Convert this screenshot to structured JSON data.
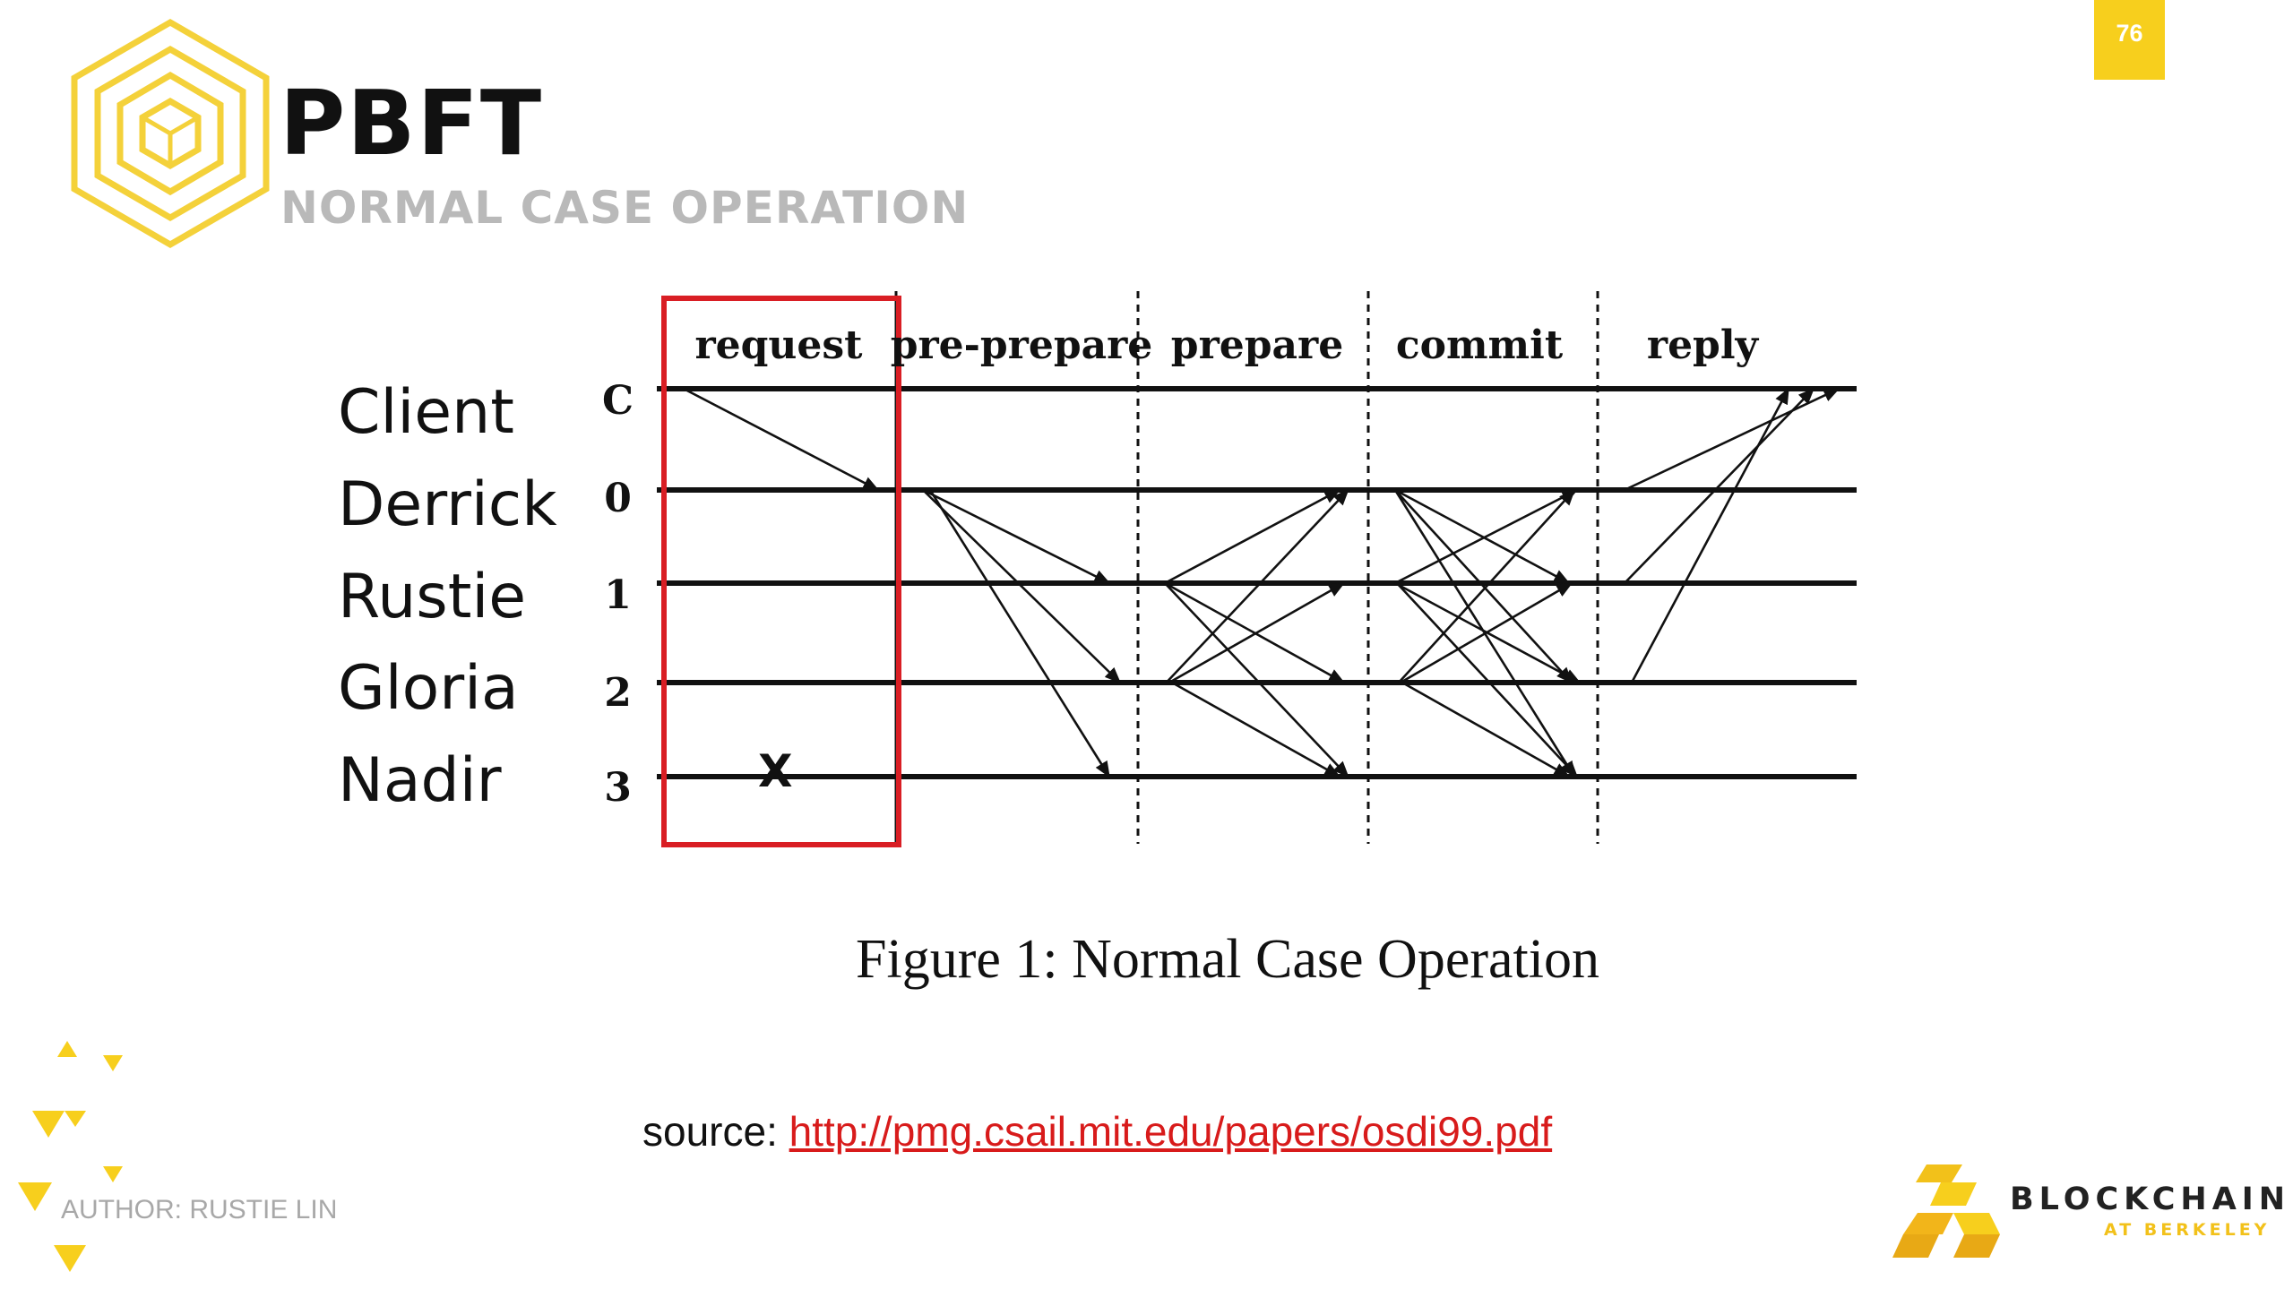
{
  "slide": {
    "number": "76",
    "title": "PBFT",
    "subtitle": "NORMAL CASE OPERATION",
    "author": "AUTHOR: RUSTIE LIN",
    "brand_name": "BLOCKCHAIN",
    "brand_sub": "AT BERKELEY",
    "accent_color": "#f7cf1d",
    "icons": [
      "hexagon-cube-logo",
      "triangle-decoration",
      "blockchain-at-berkeley-logo"
    ]
  },
  "diagram": {
    "participants": [
      "Client",
      "Derrick",
      "Rustie",
      "Gloria",
      "Nadir"
    ],
    "row_labels": [
      "C",
      "0",
      "1",
      "2",
      "3"
    ],
    "phases": [
      "request",
      "pre-prepare",
      "prepare",
      "commit",
      "reply"
    ],
    "highlighted_phase": "request",
    "highlight_color": "#d91e24",
    "crash_mark": "X",
    "crashed_replica": "3",
    "messages": {
      "request": [
        [
          "C",
          "0"
        ]
      ],
      "pre-prepare": [
        [
          "0",
          "1"
        ],
        [
          "0",
          "2"
        ],
        [
          "0",
          "3"
        ]
      ],
      "prepare": [
        [
          "1",
          "0"
        ],
        [
          "1",
          "2"
        ],
        [
          "1",
          "3"
        ],
        [
          "2",
          "0"
        ],
        [
          "2",
          "1"
        ],
        [
          "2",
          "3"
        ]
      ],
      "commit": [
        [
          "0",
          "1"
        ],
        [
          "0",
          "2"
        ],
        [
          "0",
          "3"
        ],
        [
          "1",
          "0"
        ],
        [
          "1",
          "2"
        ],
        [
          "1",
          "3"
        ],
        [
          "2",
          "0"
        ],
        [
          "2",
          "1"
        ],
        [
          "2",
          "3"
        ]
      ],
      "reply": [
        [
          "0",
          "C"
        ],
        [
          "1",
          "C"
        ],
        [
          "2",
          "C"
        ]
      ]
    }
  },
  "caption": "Figure 1:  Normal Case Operation",
  "source": {
    "prefix": "source: ",
    "link_text": "http://pmg.csail.mit.edu/papers/osdi99.pdf"
  }
}
